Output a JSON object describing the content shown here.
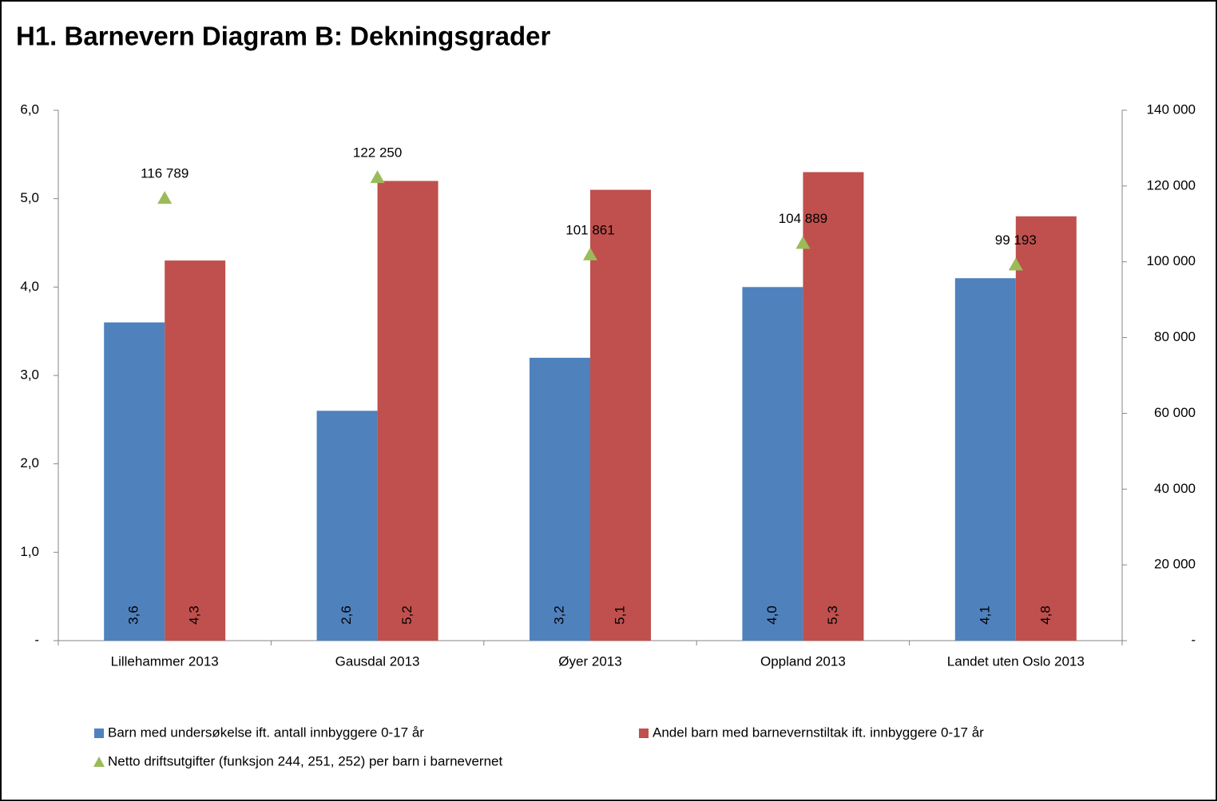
{
  "chart_data": {
    "type": "bar",
    "title": "H1. Barnevern Diagram B: Dekningsgrader",
    "categories": [
      "Lillehammer 2013",
      "Gausdal 2013",
      "Øyer 2013",
      "Oppland 2013",
      "Landet uten Oslo 2013"
    ],
    "series": [
      {
        "name": "Barn med undersøkelse ift. antall innbyggere 0-17 år",
        "type": "bar",
        "color": "#4f81bd",
        "values": [
          3.6,
          2.6,
          3.2,
          4.0,
          4.1
        ],
        "value_labels": [
          "3,6",
          "2,6",
          "3,2",
          "4,0",
          "4,1"
        ]
      },
      {
        "name": "Andel barn med barnevernstiltak ift. innbyggere 0-17 år",
        "type": "bar",
        "color": "#c0504d",
        "values": [
          4.3,
          5.2,
          5.1,
          5.3,
          4.8
        ],
        "value_labels": [
          "4,3",
          "5,2",
          "5,1",
          "5,3",
          "4,8"
        ]
      },
      {
        "name": "Netto driftsutgifter (funksjon 244, 251, 252) per barn i barnevernet",
        "type": "scatter",
        "marker": "triangle",
        "axis": "y2",
        "color": "#9bbb59",
        "values": [
          116789,
          122250,
          101861,
          104889,
          99193
        ],
        "value_labels": [
          "116 789",
          "122 250",
          "101 861",
          "104 889",
          "99 193"
        ]
      }
    ],
    "ylim": [
      0,
      6
    ],
    "yticks": [
      {
        "value": 0,
        "label": "-"
      },
      {
        "value": 1,
        "label": "1,0"
      },
      {
        "value": 2,
        "label": "2,0"
      },
      {
        "value": 3,
        "label": "3,0"
      },
      {
        "value": 4,
        "label": "4,0"
      },
      {
        "value": 5,
        "label": "5,0"
      },
      {
        "value": 6,
        "label": "6,0"
      }
    ],
    "y2lim": [
      0,
      140000
    ],
    "y2ticks": [
      {
        "value": 0,
        "label": "-"
      },
      {
        "value": 20000,
        "label": "20 000"
      },
      {
        "value": 40000,
        "label": "40 000"
      },
      {
        "value": 60000,
        "label": "60 000"
      },
      {
        "value": 80000,
        "label": "80 000"
      },
      {
        "value": 100000,
        "label": "100 000"
      },
      {
        "value": 120000,
        "label": "120 000"
      },
      {
        "value": 140000,
        "label": "140 000"
      }
    ],
    "grid": false
  }
}
